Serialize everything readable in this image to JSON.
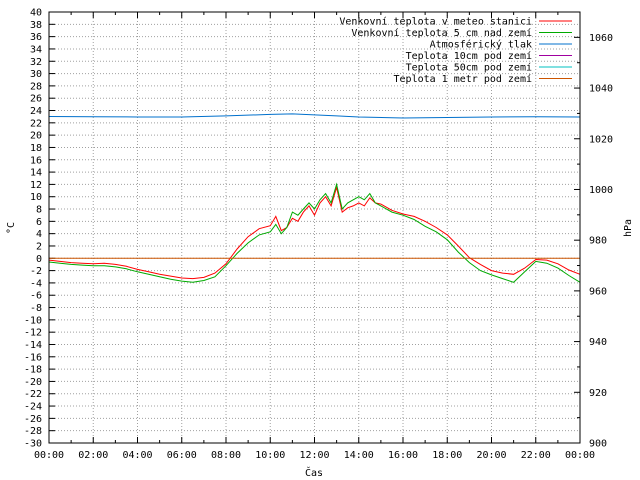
{
  "chart_data": {
    "type": "line",
    "xlabel": "Čas",
    "ylabel": "°C",
    "y2label": "hPa",
    "xlim": [
      0,
      24
    ],
    "xticks": [
      "00:00",
      "02:00",
      "04:00",
      "06:00",
      "08:00",
      "10:00",
      "12:00",
      "14:00",
      "16:00",
      "18:00",
      "20:00",
      "22:00",
      "00:00"
    ],
    "ylim": [
      -30,
      40
    ],
    "yticks": [
      40,
      38,
      36,
      34,
      32,
      30,
      28,
      26,
      24,
      22,
      20,
      18,
      16,
      14,
      12,
      10,
      8,
      6,
      4,
      2,
      0,
      -2,
      -4,
      -6,
      -8,
      -10,
      -12,
      -14,
      -16,
      -18,
      -20,
      -22,
      -24,
      -26,
      -28,
      -30
    ],
    "y2lim": [
      900,
      1070
    ],
    "y2ticks": [
      1060,
      1040,
      1020,
      1000,
      980,
      960,
      940,
      920,
      900
    ],
    "grid": true,
    "legend_position": "top-right",
    "series": [
      {
        "name": "Venkovní teplota v meteo stanici",
        "color": "#ff0000",
        "axis": "left",
        "x": [
          0,
          0.5,
          1,
          1.5,
          2,
          2.5,
          3,
          3.5,
          4,
          4.5,
          5,
          5.5,
          6,
          6.5,
          7,
          7.5,
          8,
          8.5,
          9,
          9.5,
          10,
          10.25,
          10.5,
          10.75,
          11,
          11.25,
          11.5,
          11.75,
          12,
          12.25,
          12.5,
          12.75,
          13,
          13.25,
          13.5,
          13.75,
          14,
          14.25,
          14.5,
          14.75,
          15,
          15.5,
          16,
          16.5,
          17,
          17.5,
          18,
          18.5,
          19,
          19.5,
          20,
          20.5,
          21,
          21.5,
          22,
          22.5,
          23,
          23.5,
          24
        ],
        "values": [
          -0.3,
          -0.5,
          -0.7,
          -0.8,
          -0.9,
          -0.8,
          -1.0,
          -1.3,
          -1.8,
          -2.2,
          -2.6,
          -2.9,
          -3.2,
          -3.3,
          -3.1,
          -2.4,
          -0.9,
          1.5,
          3.5,
          4.8,
          5.3,
          6.8,
          4.5,
          5.0,
          6.5,
          6.0,
          7.5,
          8.5,
          7.0,
          9.0,
          10.0,
          8.5,
          11.5,
          7.5,
          8.2,
          8.5,
          9.0,
          8.5,
          9.8,
          9.0,
          8.8,
          7.8,
          7.2,
          6.8,
          6.0,
          5.0,
          3.8,
          2.0,
          0.1,
          -1.0,
          -2.0,
          -2.4,
          -2.6,
          -1.6,
          -0.2,
          -0.3,
          -0.9,
          -1.9,
          -2.6
        ]
      },
      {
        "name": "Venkovní teplota 5 cm nad zemí",
        "color": "#00aa00",
        "axis": "left",
        "x": [
          0,
          0.5,
          1,
          1.5,
          2,
          2.5,
          3,
          3.5,
          4,
          4.5,
          5,
          5.5,
          6,
          6.5,
          7,
          7.5,
          8,
          8.5,
          9,
          9.5,
          10,
          10.25,
          10.5,
          10.75,
          11,
          11.25,
          11.5,
          11.75,
          12,
          12.25,
          12.5,
          12.75,
          13,
          13.25,
          13.5,
          13.75,
          14,
          14.25,
          14.5,
          14.75,
          15,
          15.5,
          16,
          16.5,
          17,
          17.5,
          18,
          18.5,
          19,
          19.5,
          20,
          20.5,
          21,
          21.5,
          22,
          22.5,
          23,
          23.5,
          24
        ],
        "values": [
          -0.6,
          -0.8,
          -1.0,
          -1.1,
          -1.2,
          -1.2,
          -1.4,
          -1.7,
          -2.2,
          -2.6,
          -3.0,
          -3.4,
          -3.7,
          -3.9,
          -3.6,
          -3.0,
          -1.2,
          0.8,
          2.5,
          3.8,
          4.3,
          5.5,
          4.0,
          5.0,
          7.5,
          7.0,
          8.0,
          9.0,
          8.0,
          9.5,
          10.5,
          9.0,
          12.0,
          8.0,
          9.0,
          9.5,
          10.0,
          9.5,
          10.5,
          9.0,
          8.5,
          7.5,
          7.0,
          6.3,
          5.2,
          4.3,
          3.0,
          1.0,
          -0.7,
          -2.0,
          -2.7,
          -3.3,
          -3.9,
          -2.2,
          -0.5,
          -0.8,
          -1.6,
          -2.8,
          -3.9
        ]
      },
      {
        "name": "Atmosférický tlak",
        "color": "#0070cc",
        "axis": "right",
        "x": [
          0,
          2,
          4,
          6,
          8,
          10,
          11,
          12,
          13,
          14,
          16,
          18,
          20,
          22,
          24
        ],
        "values": [
          1028.8,
          1028.7,
          1028.6,
          1028.6,
          1029.0,
          1029.6,
          1029.8,
          1029.4,
          1029.0,
          1028.6,
          1028.2,
          1028.4,
          1028.6,
          1028.7,
          1028.6
        ]
      },
      {
        "name": "Teplota 10cm pod zemí",
        "color": "#a000a0",
        "axis": "left",
        "x": [],
        "values": []
      },
      {
        "name": "Teplota 50cm pod zemí",
        "color": "#00c0c0",
        "axis": "left",
        "x": [],
        "values": []
      },
      {
        "name": "Teplota 1 metr pod zemí",
        "color": "#cc5500",
        "axis": "left",
        "x": [
          0,
          24
        ],
        "values": [
          0,
          0
        ]
      }
    ]
  }
}
